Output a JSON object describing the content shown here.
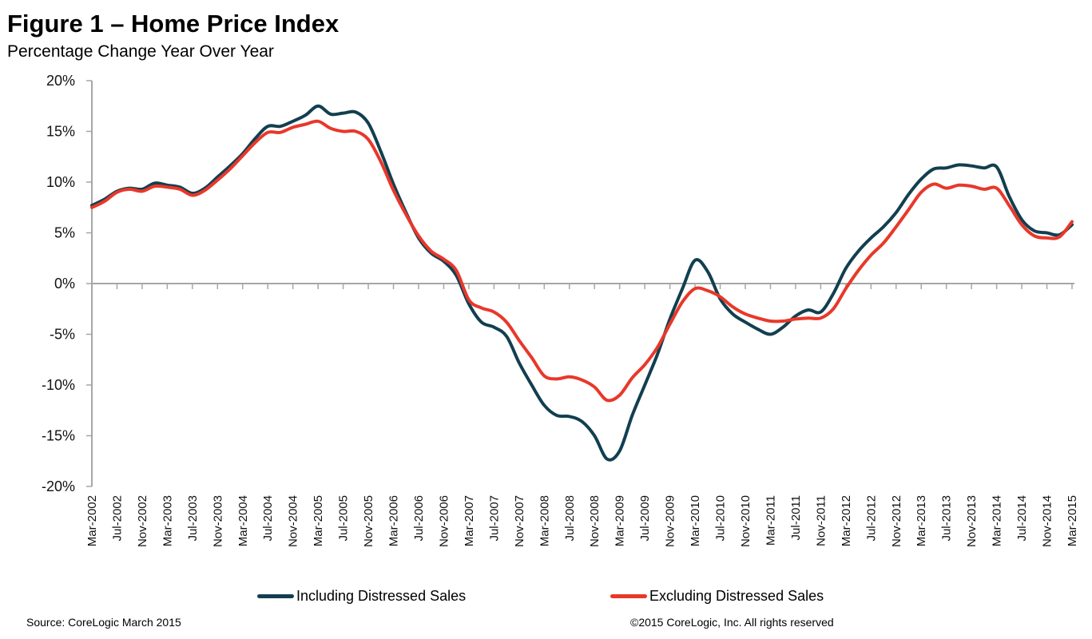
{
  "header": {
    "title": "Figure 1 – Home Price Index",
    "subtitle": "Percentage Change Year Over Year"
  },
  "footer": {
    "source": "Source: CoreLogic March 2015",
    "copyright": "©2015 CoreLogic, Inc. All rights reserved"
  },
  "colors": {
    "including": "#123f50",
    "excluding": "#e8382a",
    "axis": "#a6a6a6"
  },
  "chart_data": {
    "type": "line",
    "title": "Figure 1 – Home Price Index",
    "subtitle": "Percentage Change Year Over Year",
    "xlabel": "",
    "ylabel": "",
    "ylim": [
      -20,
      20
    ],
    "y_ticks": [
      20,
      15,
      10,
      5,
      0,
      -5,
      -10,
      -15,
      -20
    ],
    "y_tick_labels": [
      "20%",
      "15%",
      "10%",
      "5%",
      "0%",
      "-5%",
      "-10%",
      "-15%",
      "-20%"
    ],
    "grid": false,
    "legend_position": "bottom",
    "x_start": "Mar-2002",
    "x_end": "Mar-2015",
    "x_step_months": 2,
    "x_tick_labels": [
      "Mar-2002",
      "Jul-2002",
      "Nov-2002",
      "Mar-2003",
      "Jul-2003",
      "Nov-2003",
      "Mar-2004",
      "Jul-2004",
      "Nov-2004",
      "Mar-2005",
      "Jul-2005",
      "Nov-2005",
      "Mar-2006",
      "Jul-2006",
      "Nov-2006",
      "Mar-2007",
      "Jul-2007",
      "Nov-2007",
      "Mar-2008",
      "Jul-2008",
      "Nov-2008",
      "Mar-2009",
      "Jul-2009",
      "Nov-2009",
      "Mar-2010",
      "Jul-2010",
      "Nov-2010",
      "Mar-2011",
      "Jul-2011",
      "Nov-2011",
      "Mar-2012",
      "Jul-2012",
      "Nov-2012",
      "Mar-2013",
      "Jul-2013",
      "Nov-2013",
      "Mar-2014",
      "Jul-2014",
      "Nov-2014",
      "Mar-2015"
    ],
    "series": [
      {
        "name": "Including Distressed Sales",
        "color": "#123f50",
        "values": [
          7.7,
          8.3,
          9.1,
          9.4,
          9.3,
          9.9,
          9.7,
          9.5,
          8.9,
          9.4,
          10.5,
          11.6,
          12.8,
          14.3,
          15.5,
          15.5,
          16.0,
          16.6,
          17.5,
          16.7,
          16.8,
          16.9,
          15.8,
          13.0,
          9.8,
          7.0,
          4.5,
          3.0,
          2.2,
          0.8,
          -2.0,
          -3.8,
          -4.3,
          -5.2,
          -7.8,
          -10.0,
          -12.0,
          -13.0,
          -13.1,
          -13.6,
          -15.0,
          -17.3,
          -16.5,
          -13.0,
          -10.0,
          -7.0,
          -3.5,
          -0.5,
          2.3,
          1.2,
          -1.5,
          -3.0,
          -3.8,
          -4.5,
          -5.0,
          -4.3,
          -3.2,
          -2.6,
          -2.8,
          -1.0,
          1.5,
          3.2,
          4.5,
          5.6,
          7.0,
          8.8,
          10.3,
          11.3,
          11.4,
          11.7,
          11.6,
          11.4,
          11.5,
          8.6,
          6.3,
          5.2,
          5.0,
          4.8,
          5.8
        ]
      },
      {
        "name": "Excluding Distressed Sales",
        "color": "#e8382a",
        "values": [
          7.5,
          8.1,
          9.0,
          9.3,
          9.1,
          9.6,
          9.5,
          9.3,
          8.7,
          9.2,
          10.2,
          11.3,
          12.6,
          13.9,
          14.9,
          14.9,
          15.4,
          15.7,
          16.0,
          15.3,
          15.0,
          15.0,
          14.2,
          12.0,
          9.2,
          6.8,
          4.7,
          3.2,
          2.4,
          1.3,
          -1.6,
          -2.4,
          -2.8,
          -3.8,
          -5.6,
          -7.3,
          -9.1,
          -9.4,
          -9.2,
          -9.5,
          -10.2,
          -11.5,
          -11.0,
          -9.3,
          -8.0,
          -6.3,
          -4.0,
          -1.8,
          -0.5,
          -0.7,
          -1.3,
          -2.3,
          -3.0,
          -3.4,
          -3.7,
          -3.7,
          -3.5,
          -3.4,
          -3.4,
          -2.5,
          -0.5,
          1.3,
          2.8,
          4.0,
          5.6,
          7.3,
          9.0,
          9.8,
          9.4,
          9.7,
          9.6,
          9.3,
          9.4,
          7.7,
          5.8,
          4.7,
          4.5,
          4.6,
          6.1
        ]
      }
    ]
  }
}
